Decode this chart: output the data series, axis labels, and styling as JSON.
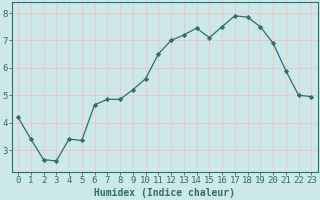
{
  "x": [
    0,
    1,
    2,
    3,
    4,
    5,
    6,
    7,
    8,
    9,
    10,
    11,
    12,
    13,
    14,
    15,
    16,
    17,
    18,
    19,
    20,
    21,
    22,
    23
  ],
  "y": [
    4.2,
    3.4,
    2.65,
    2.6,
    3.4,
    3.35,
    4.65,
    4.85,
    4.85,
    5.2,
    5.6,
    6.5,
    7.0,
    7.2,
    7.45,
    7.1,
    7.5,
    7.9,
    7.85,
    7.5,
    6.9,
    5.9,
    5.0,
    4.95
  ],
  "line_color": "#2e6e6e",
  "marker": "D",
  "marker_size": 2.2,
  "bg_color": "#cce8e8",
  "grid_color": "#f0c8c8",
  "axis_color": "#2e6e6e",
  "xlabel": "Humidex (Indice chaleur)",
  "xlabel_fontsize": 7,
  "tick_fontsize": 6.5,
  "ylim": [
    2.2,
    8.4
  ],
  "xlim": [
    -0.5,
    23.5
  ],
  "yticks": [
    3,
    4,
    5,
    6,
    7,
    8
  ],
  "xticks": [
    0,
    1,
    2,
    3,
    4,
    5,
    6,
    7,
    8,
    9,
    10,
    11,
    12,
    13,
    14,
    15,
    16,
    17,
    18,
    19,
    20,
    21,
    22,
    23
  ]
}
